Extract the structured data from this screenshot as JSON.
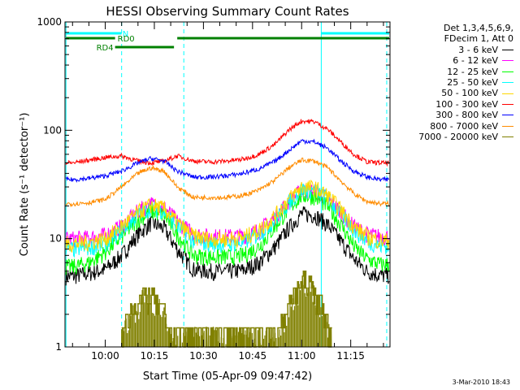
{
  "chart_data": {
    "type": "line",
    "title": "HESSI Observing Summary Count Rates",
    "xlabel": "Start Time (05-Apr-09 09:47:42)",
    "ylabel": "Count Rate (s⁻¹ detector⁻¹)",
    "yscale": "log",
    "ylim": [
      1,
      1000
    ],
    "xlim": [
      "09:47:42",
      "11:27:00"
    ],
    "yticks": [
      1,
      10,
      100,
      1000
    ],
    "ytick_labels": [
      "1",
      "10",
      "100",
      "1000"
    ],
    "xticks": [
      "10:00",
      "10:15",
      "10:30",
      "10:45",
      "11:00",
      "11:15"
    ],
    "legend_header": [
      "Det 1,3,4,5,6,9,",
      "FDecim 1, Att 0"
    ],
    "legend_position": "right",
    "series": [
      {
        "name": "3 - 6 keV",
        "color": "#000000",
        "x": [
          "09:50",
          "09:55",
          "10:00",
          "10:05",
          "10:10",
          "10:14",
          "10:18",
          "10:22",
          "10:27",
          "10:32",
          "10:37",
          "10:42",
          "10:47",
          "10:52",
          "10:56",
          "11:00",
          "11:04",
          "11:08",
          "11:12",
          "11:16",
          "11:20",
          "11:24"
        ],
        "values": [
          4.5,
          4.8,
          5.2,
          7.0,
          11.0,
          14.0,
          12.5,
          8.0,
          5.2,
          5.0,
          5.0,
          5.1,
          6.0,
          8.5,
          12.5,
          17.0,
          16.5,
          13.5,
          9.5,
          6.5,
          5.0,
          4.6
        ]
      },
      {
        "name": "6 - 12 keV",
        "color": "#ff00ff",
        "x": [
          "09:50",
          "09:55",
          "10:00",
          "10:05",
          "10:10",
          "10:14",
          "10:18",
          "10:22",
          "10:27",
          "10:32",
          "10:37",
          "10:42",
          "10:47",
          "10:52",
          "10:56",
          "11:00",
          "11:04",
          "11:08",
          "11:12",
          "11:16",
          "11:20",
          "11:24"
        ],
        "values": [
          10.0,
          10.2,
          10.8,
          13.0,
          18.0,
          21.0,
          19.5,
          14.5,
          11.0,
          10.5,
          10.5,
          10.6,
          12.0,
          16.0,
          22.0,
          28.0,
          27.5,
          23.5,
          17.5,
          13.0,
          11.0,
          10.5
        ]
      },
      {
        "name": "12 - 25 keV",
        "color": "#00ff00",
        "x": [
          "09:50",
          "09:55",
          "10:00",
          "10:05",
          "10:10",
          "10:14",
          "10:18",
          "10:22",
          "10:27",
          "10:32",
          "10:37",
          "10:42",
          "10:47",
          "10:52",
          "10:56",
          "11:00",
          "11:04",
          "11:08",
          "11:12",
          "11:16",
          "11:20",
          "11:24"
        ],
        "values": [
          5.5,
          6.0,
          7.5,
          10.5,
          15.0,
          18.0,
          16.5,
          11.0,
          7.0,
          6.8,
          6.8,
          7.0,
          8.5,
          13.0,
          19.0,
          25.0,
          24.5,
          20.0,
          13.5,
          8.5,
          6.5,
          5.8
        ]
      },
      {
        "name": "25 - 50 keV",
        "color": "#00ffff",
        "x": [
          "09:50",
          "09:55",
          "10:00",
          "10:05",
          "10:10",
          "10:14",
          "10:18",
          "10:22",
          "10:27",
          "10:32",
          "10:37",
          "10:42",
          "10:47",
          "10:52",
          "10:56",
          "11:00",
          "11:04",
          "11:08",
          "11:12",
          "11:16",
          "11:20",
          "11:24"
        ],
        "values": [
          8.0,
          8.3,
          9.0,
          12.0,
          16.5,
          19.5,
          18.0,
          13.0,
          9.5,
          9.0,
          9.0,
          9.2,
          11.0,
          15.0,
          21.5,
          28.5,
          28.0,
          23.5,
          17.0,
          12.0,
          9.5,
          8.6
        ]
      },
      {
        "name": "50 - 100 keV",
        "color": "#ffd700",
        "x": [
          "09:50",
          "09:55",
          "10:00",
          "10:05",
          "10:10",
          "10:14",
          "10:18",
          "10:22",
          "10:27",
          "10:32",
          "10:37",
          "10:42",
          "10:47",
          "10:52",
          "10:56",
          "11:00",
          "11:04",
          "11:08",
          "11:12",
          "11:16",
          "11:20",
          "11:24"
        ],
        "values": [
          9.0,
          9.3,
          10.0,
          13.0,
          17.5,
          20.5,
          19.0,
          14.0,
          10.5,
          10.0,
          10.0,
          10.2,
          12.0,
          16.5,
          23.0,
          30.0,
          29.5,
          25.0,
          18.5,
          13.0,
          10.5,
          9.6
        ]
      },
      {
        "name": "100 - 300 keV",
        "color": "#ff0000",
        "x": [
          "09:50",
          "09:55",
          "10:00",
          "10:05",
          "10:10",
          "10:14",
          "10:18",
          "10:22",
          "10:27",
          "10:32",
          "10:37",
          "10:42",
          "10:47",
          "10:52",
          "10:56",
          "11:00",
          "11:04",
          "11:08",
          "11:12",
          "11:16",
          "11:20",
          "11:24"
        ],
        "values": [
          50,
          53,
          56,
          58,
          52,
          50,
          52,
          58,
          52,
          51,
          52,
          54,
          60,
          75,
          100,
          122,
          120,
          102,
          78,
          60,
          51,
          50
        ]
      },
      {
        "name": "300 - 800 keV",
        "color": "#0000ff",
        "x": [
          "09:50",
          "09:55",
          "10:00",
          "10:05",
          "10:10",
          "10:14",
          "10:18",
          "10:22",
          "10:27",
          "10:32",
          "10:37",
          "10:42",
          "10:47",
          "10:52",
          "10:56",
          "11:00",
          "11:04",
          "11:08",
          "11:12",
          "11:16",
          "11:20",
          "11:24"
        ],
        "values": [
          35,
          36,
          38,
          42,
          50,
          55,
          52,
          42,
          37,
          37,
          38,
          40,
          44,
          52,
          65,
          80,
          78,
          68,
          52,
          42,
          37,
          35
        ]
      },
      {
        "name": "800 - 7000 keV",
        "color": "#ff8c00",
        "x": [
          "09:50",
          "09:55",
          "10:00",
          "10:05",
          "10:10",
          "10:14",
          "10:18",
          "10:22",
          "10:27",
          "10:32",
          "10:37",
          "10:42",
          "10:47",
          "10:52",
          "10:56",
          "11:00",
          "11:04",
          "11:08",
          "11:12",
          "11:16",
          "11:20",
          "11:24"
        ],
        "values": [
          21,
          21.5,
          23,
          30,
          40,
          45,
          42,
          30,
          24,
          24,
          24,
          25,
          28,
          35,
          45,
          53,
          52,
          45,
          34,
          26,
          22,
          21
        ]
      },
      {
        "name": "7000 - 20000 keV",
        "color": "#808000",
        "x": [
          "10:05",
          "10:07",
          "10:10",
          "10:12",
          "10:14",
          "10:16",
          "10:18",
          "10:20",
          "10:53",
          "10:55",
          "10:57",
          "10:59",
          "11:01",
          "11:03",
          "11:05",
          "11:07",
          "11:09"
        ],
        "values": [
          1.3,
          2.0,
          2.5,
          3.0,
          2.8,
          2.5,
          2.0,
          1.3,
          1.3,
          2.0,
          2.8,
          3.5,
          4.0,
          3.5,
          2.8,
          2.0,
          1.3
        ]
      }
    ],
    "flag_lines": [
      {
        "label": "N",
        "color": "#00ffff",
        "row": 1,
        "segments": [
          [
            "09:48",
            "10:05"
          ],
          [
            "11:06",
            "11:27"
          ]
        ]
      },
      {
        "label": "RD0",
        "color": "#008000",
        "row": 2,
        "segments": [
          [
            "09:48",
            "10:03"
          ],
          [
            "10:22",
            "11:27"
          ]
        ]
      },
      {
        "label": "RD4",
        "color": "#008000",
        "row": 3,
        "segments": [
          [
            "10:03",
            "10:21"
          ]
        ]
      }
    ],
    "vertical_markers": [
      {
        "time": "09:48",
        "style": "solid",
        "color": "#00ffff"
      },
      {
        "time": "10:05",
        "style": "dashed",
        "color": "#00ffff"
      },
      {
        "time": "10:24",
        "style": "dashed",
        "color": "#00ffff"
      },
      {
        "time": "11:06",
        "style": "solid",
        "color": "#00ffff"
      },
      {
        "time": "11:26",
        "style": "dashed",
        "color": "#00ffff"
      }
    ],
    "grid": false
  },
  "footer": {
    "timestamp": "3-Mar-2010 18:43"
  }
}
